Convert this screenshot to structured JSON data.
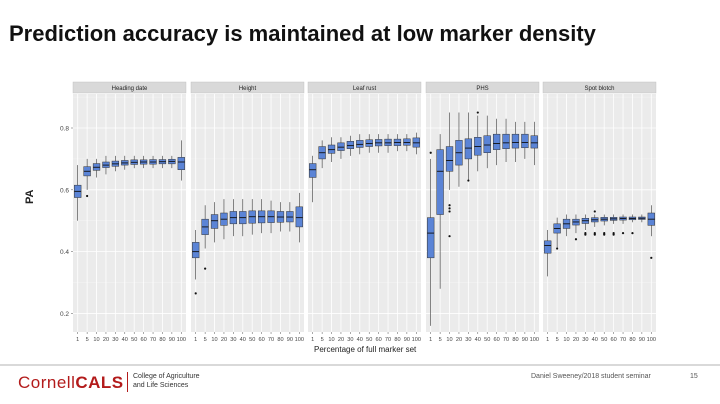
{
  "slide": {
    "title": "Prediction accuracy is maintained at low marker density",
    "footer_left_brand": "Cornell",
    "footer_brand_bold": "CALS",
    "college_line1": "College of Agriculture",
    "college_line2": "and Life Sciences",
    "presenter": "Daniel Sweeney/2018 student seminar",
    "page": "15"
  },
  "colors": {
    "box_fill": "#5b84d6",
    "panel_bg": "#ebebeb",
    "strip_bg": "#d9d9d9",
    "brand": "#b31b1b"
  },
  "chart_data": {
    "type": "boxplot",
    "xlabel": "Percentage of full marker set",
    "ylabel": "PA",
    "categories": [
      "1",
      "5",
      "10",
      "20",
      "30",
      "40",
      "50",
      "60",
      "70",
      "80",
      "90",
      "100"
    ],
    "yticks": [
      0.2,
      0.4,
      0.6,
      0.8
    ],
    "ylim": [
      0.14,
      0.91
    ],
    "grid": true,
    "panels": [
      {
        "name": "Heading date",
        "boxes": [
          {
            "min": 0.5,
            "q1": 0.575,
            "median": 0.595,
            "q3": 0.615,
            "max": 0.68,
            "outliers": []
          },
          {
            "min": 0.6,
            "q1": 0.645,
            "median": 0.66,
            "q3": 0.675,
            "max": 0.7,
            "outliers": [
              0.58
            ]
          },
          {
            "min": 0.64,
            "q1": 0.663,
            "median": 0.673,
            "q3": 0.685,
            "max": 0.7
          },
          {
            "min": 0.65,
            "q1": 0.672,
            "median": 0.68,
            "q3": 0.69,
            "max": 0.71
          },
          {
            "min": 0.66,
            "q1": 0.676,
            "median": 0.684,
            "q3": 0.693,
            "max": 0.71
          },
          {
            "min": 0.665,
            "q1": 0.68,
            "median": 0.687,
            "q3": 0.695,
            "max": 0.71
          },
          {
            "min": 0.67,
            "q1": 0.682,
            "median": 0.689,
            "q3": 0.697,
            "max": 0.71
          },
          {
            "min": 0.67,
            "q1": 0.683,
            "median": 0.69,
            "q3": 0.697,
            "max": 0.71
          },
          {
            "min": 0.67,
            "q1": 0.683,
            "median": 0.69,
            "q3": 0.698,
            "max": 0.71
          },
          {
            "min": 0.67,
            "q1": 0.684,
            "median": 0.691,
            "q3": 0.698,
            "max": 0.71
          },
          {
            "min": 0.67,
            "q1": 0.684,
            "median": 0.692,
            "q3": 0.699,
            "max": 0.71
          },
          {
            "min": 0.63,
            "q1": 0.665,
            "median": 0.69,
            "q3": 0.705,
            "max": 0.76
          }
        ]
      },
      {
        "name": "Height",
        "boxes": [
          {
            "min": 0.31,
            "q1": 0.38,
            "median": 0.4,
            "q3": 0.43,
            "max": 0.47,
            "outliers": [
              0.265
            ]
          },
          {
            "min": 0.41,
            "q1": 0.455,
            "median": 0.48,
            "q3": 0.505,
            "max": 0.55,
            "outliers": [
              0.345
            ]
          },
          {
            "min": 0.43,
            "q1": 0.475,
            "median": 0.5,
            "q3": 0.52,
            "max": 0.56
          },
          {
            "min": 0.44,
            "q1": 0.485,
            "median": 0.505,
            "q3": 0.525,
            "max": 0.57
          },
          {
            "min": 0.45,
            "q1": 0.49,
            "median": 0.51,
            "q3": 0.53,
            "max": 0.57
          },
          {
            "min": 0.45,
            "q1": 0.49,
            "median": 0.51,
            "q3": 0.53,
            "max": 0.57
          },
          {
            "min": 0.455,
            "q1": 0.492,
            "median": 0.513,
            "q3": 0.532,
            "max": 0.57
          },
          {
            "min": 0.46,
            "q1": 0.493,
            "median": 0.513,
            "q3": 0.532,
            "max": 0.57
          },
          {
            "min": 0.46,
            "q1": 0.494,
            "median": 0.513,
            "q3": 0.532,
            "max": 0.565
          },
          {
            "min": 0.465,
            "q1": 0.495,
            "median": 0.512,
            "q3": 0.53,
            "max": 0.56
          },
          {
            "min": 0.465,
            "q1": 0.496,
            "median": 0.512,
            "q3": 0.53,
            "max": 0.56
          },
          {
            "min": 0.43,
            "q1": 0.48,
            "median": 0.51,
            "q3": 0.545,
            "max": 0.59
          }
        ]
      },
      {
        "name": "Leaf rust",
        "boxes": [
          {
            "min": 0.56,
            "q1": 0.64,
            "median": 0.665,
            "q3": 0.685,
            "max": 0.71
          },
          {
            "min": 0.67,
            "q1": 0.7,
            "median": 0.72,
            "q3": 0.74,
            "max": 0.76
          },
          {
            "min": 0.69,
            "q1": 0.718,
            "median": 0.73,
            "q3": 0.745,
            "max": 0.77
          },
          {
            "min": 0.7,
            "q1": 0.727,
            "median": 0.738,
            "q3": 0.752,
            "max": 0.77
          },
          {
            "min": 0.71,
            "q1": 0.733,
            "median": 0.743,
            "q3": 0.757,
            "max": 0.775
          },
          {
            "min": 0.715,
            "q1": 0.737,
            "median": 0.747,
            "q3": 0.76,
            "max": 0.78
          },
          {
            "min": 0.72,
            "q1": 0.74,
            "median": 0.75,
            "q3": 0.762,
            "max": 0.78
          },
          {
            "min": 0.72,
            "q1": 0.742,
            "median": 0.752,
            "q3": 0.763,
            "max": 0.78
          },
          {
            "min": 0.72,
            "q1": 0.743,
            "median": 0.752,
            "q3": 0.764,
            "max": 0.78
          },
          {
            "min": 0.725,
            "q1": 0.743,
            "median": 0.753,
            "q3": 0.764,
            "max": 0.78
          },
          {
            "min": 0.725,
            "q1": 0.744,
            "median": 0.753,
            "q3": 0.765,
            "max": 0.78
          },
          {
            "min": 0.715,
            "q1": 0.738,
            "median": 0.752,
            "q3": 0.768,
            "max": 0.785
          }
        ]
      },
      {
        "name": "PHS",
        "boxes": [
          {
            "min": 0.16,
            "q1": 0.38,
            "median": 0.46,
            "q3": 0.51,
            "max": 0.7,
            "outliers": [
              0.72
            ]
          },
          {
            "min": 0.28,
            "q1": 0.52,
            "median": 0.66,
            "q3": 0.73,
            "max": 0.78
          },
          {
            "min": 0.6,
            "q1": 0.66,
            "median": 0.695,
            "q3": 0.74,
            "max": 0.85,
            "outliers": [
              0.55,
              0.54,
              0.53,
              0.45
            ]
          },
          {
            "min": 0.61,
            "q1": 0.68,
            "median": 0.72,
            "q3": 0.76,
            "max": 0.85
          },
          {
            "min": 0.63,
            "q1": 0.7,
            "median": 0.735,
            "q3": 0.765,
            "max": 0.85,
            "outliers": [
              0.63
            ]
          },
          {
            "min": 0.66,
            "q1": 0.712,
            "median": 0.74,
            "q3": 0.77,
            "max": 0.84,
            "outliers": [
              0.85
            ]
          },
          {
            "min": 0.67,
            "q1": 0.72,
            "median": 0.745,
            "q3": 0.775,
            "max": 0.84
          },
          {
            "min": 0.68,
            "q1": 0.73,
            "median": 0.75,
            "q3": 0.78,
            "max": 0.83
          },
          {
            "min": 0.69,
            "q1": 0.733,
            "median": 0.752,
            "q3": 0.78,
            "max": 0.83
          },
          {
            "min": 0.69,
            "q1": 0.735,
            "median": 0.753,
            "q3": 0.78,
            "max": 0.82
          },
          {
            "min": 0.7,
            "q1": 0.736,
            "median": 0.753,
            "q3": 0.78,
            "max": 0.82
          },
          {
            "min": 0.68,
            "q1": 0.735,
            "median": 0.752,
            "q3": 0.775,
            "max": 0.82
          }
        ]
      },
      {
        "name": "Spot blotch",
        "boxes": [
          {
            "min": 0.32,
            "q1": 0.395,
            "median": 0.42,
            "q3": 0.435,
            "max": 0.47
          },
          {
            "min": 0.41,
            "q1": 0.46,
            "median": 0.475,
            "q3": 0.49,
            "max": 0.51,
            "outliers": [
              0.41
            ]
          },
          {
            "min": 0.45,
            "q1": 0.475,
            "median": 0.49,
            "q3": 0.505,
            "max": 0.52
          },
          {
            "min": 0.46,
            "q1": 0.486,
            "median": 0.496,
            "q3": 0.505,
            "max": 0.52,
            "outliers": [
              0.44
            ]
          },
          {
            "min": 0.47,
            "q1": 0.491,
            "median": 0.5,
            "q3": 0.508,
            "max": 0.52,
            "outliers": [
              0.46,
              0.455
            ]
          },
          {
            "min": 0.48,
            "q1": 0.496,
            "median": 0.503,
            "q3": 0.51,
            "max": 0.52,
            "outliers": [
              0.46,
              0.455,
              0.53
            ]
          },
          {
            "min": 0.485,
            "q1": 0.499,
            "median": 0.505,
            "q3": 0.511,
            "max": 0.52,
            "outliers": [
              0.46,
              0.455
            ]
          },
          {
            "min": 0.49,
            "q1": 0.501,
            "median": 0.506,
            "q3": 0.511,
            "max": 0.52,
            "outliers": [
              0.46,
              0.455
            ]
          },
          {
            "min": 0.49,
            "q1": 0.502,
            "median": 0.507,
            "q3": 0.512,
            "max": 0.52,
            "outliers": [
              0.46
            ]
          },
          {
            "min": 0.495,
            "q1": 0.503,
            "median": 0.507,
            "q3": 0.512,
            "max": 0.52,
            "outliers": [
              0.46
            ]
          },
          {
            "min": 0.495,
            "q1": 0.504,
            "median": 0.508,
            "q3": 0.512,
            "max": 0.52
          },
          {
            "min": 0.45,
            "q1": 0.485,
            "median": 0.505,
            "q3": 0.525,
            "max": 0.55,
            "outliers": [
              0.38
            ]
          }
        ]
      }
    ]
  }
}
